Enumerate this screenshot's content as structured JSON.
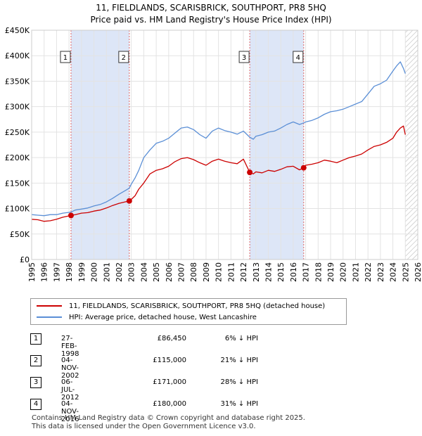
{
  "chart_data": {
    "type": "line",
    "title": "11, FIELDLANDS, SCARISBRICK, SOUTHPORT, PR8 5HQ",
    "subtitle": "Price paid vs. HM Land Registry's House Price Index (HPI)",
    "xlabel": "",
    "ylabel": "",
    "xlim": [
      1995,
      2026
    ],
    "ylim": [
      0,
      450000
    ],
    "y_ticks": [
      0,
      50000,
      100000,
      150000,
      200000,
      250000,
      300000,
      350000,
      400000,
      450000
    ],
    "y_tick_labels": [
      "£0",
      "£50K",
      "£100K",
      "£150K",
      "£200K",
      "£250K",
      "£300K",
      "£350K",
      "£400K",
      "£450K"
    ],
    "x_ticks": [
      1995,
      1996,
      1997,
      1998,
      1999,
      2000,
      2001,
      2002,
      2003,
      2004,
      2005,
      2006,
      2007,
      2008,
      2009,
      2010,
      2011,
      2012,
      2013,
      2014,
      2015,
      2016,
      2017,
      2018,
      2019,
      2020,
      2021,
      2022,
      2023,
      2024,
      2025,
      2026
    ],
    "x_tick_labels": [
      "1995",
      "1996",
      "1997",
      "1998",
      "1999",
      "2000",
      "2001",
      "2002",
      "2003",
      "2004",
      "2005",
      "2006",
      "2007",
      "2008",
      "2009",
      "2010",
      "2011",
      "2012",
      "2013",
      "2014",
      "2015",
      "2016",
      "2017",
      "2018",
      "2019",
      "2020",
      "2021",
      "2022",
      "2023",
      "2024",
      "2025",
      "2026"
    ],
    "grid": true,
    "series": [
      {
        "name": "11, FIELDLANDS, SCARISBRICK, SOUTHPORT, PR8 5HQ (detached house)",
        "color": "#cc0000",
        "x": [
          1995.0,
          1995.5,
          1996.0,
          1996.5,
          1997.0,
          1997.5,
          1998.16,
          1998.5,
          1999.0,
          1999.5,
          2000.0,
          2000.5,
          2001.0,
          2001.5,
          2002.0,
          2002.5,
          2002.84,
          2003.0,
          2003.3,
          2003.6,
          2004.0,
          2004.5,
          2005.0,
          2005.5,
          2006.0,
          2006.5,
          2007.0,
          2007.5,
          2008.0,
          2008.5,
          2009.0,
          2009.5,
          2010.0,
          2010.5,
          2011.0,
          2011.5,
          2012.0,
          2012.51,
          2012.8,
          2013.0,
          2013.5,
          2014.0,
          2014.5,
          2015.0,
          2015.5,
          2016.0,
          2016.5,
          2016.84,
          2017.0,
          2017.5,
          2018.0,
          2018.5,
          2019.0,
          2019.5,
          2020.0,
          2020.5,
          2021.0,
          2021.5,
          2022.0,
          2022.5,
          2023.0,
          2023.5,
          2024.0,
          2024.3,
          2024.6,
          2024.85,
          2025.0
        ],
        "values": [
          79000,
          78000,
          75000,
          76000,
          79000,
          83000,
          86450,
          88000,
          91000,
          92000,
          95000,
          97000,
          101000,
          106000,
          110000,
          113000,
          115000,
          118000,
          125000,
          138000,
          150000,
          168000,
          175000,
          178000,
          183000,
          192000,
          198000,
          200000,
          196000,
          190000,
          185000,
          193000,
          197000,
          193000,
          190000,
          188000,
          197000,
          171000,
          168000,
          172000,
          170000,
          175000,
          173000,
          177000,
          182000,
          183000,
          176000,
          180000,
          185000,
          187000,
          190000,
          195000,
          193000,
          190000,
          195000,
          200000,
          203000,
          207000,
          215000,
          222000,
          225000,
          230000,
          238000,
          250000,
          258000,
          262000,
          245000
        ]
      },
      {
        "name": "HPI: Average price, detached house, West Lancashire",
        "color": "#5b8fd6",
        "x": [
          1995.0,
          1995.5,
          1996.0,
          1996.5,
          1997.0,
          1997.5,
          1998.16,
          1998.5,
          1999.0,
          1999.5,
          2000.0,
          2000.5,
          2001.0,
          2001.5,
          2002.0,
          2002.5,
          2002.84,
          2003.0,
          2003.3,
          2003.6,
          2004.0,
          2004.5,
          2005.0,
          2005.5,
          2006.0,
          2006.5,
          2007.0,
          2007.5,
          2008.0,
          2008.5,
          2009.0,
          2009.5,
          2010.0,
          2010.5,
          2011.0,
          2011.5,
          2012.0,
          2012.51,
          2012.8,
          2013.0,
          2013.5,
          2014.0,
          2014.5,
          2015.0,
          2015.5,
          2016.0,
          2016.5,
          2016.84,
          2017.0,
          2017.5,
          2018.0,
          2018.5,
          2019.0,
          2019.5,
          2020.0,
          2020.5,
          2021.0,
          2021.5,
          2022.0,
          2022.5,
          2023.0,
          2023.5,
          2024.0,
          2024.3,
          2024.6,
          2024.85,
          2025.0
        ],
        "values": [
          88000,
          87000,
          86000,
          88000,
          88000,
          91000,
          93000,
          97000,
          99000,
          101000,
          105000,
          108000,
          113000,
          120000,
          128000,
          135000,
          140000,
          148000,
          160000,
          175000,
          200000,
          215000,
          228000,
          232000,
          238000,
          248000,
          258000,
          260000,
          255000,
          245000,
          238000,
          252000,
          258000,
          253000,
          250000,
          246000,
          252000,
          240000,
          236000,
          242000,
          245000,
          250000,
          252000,
          258000,
          265000,
          270000,
          265000,
          268000,
          270000,
          273000,
          278000,
          285000,
          290000,
          292000,
          295000,
          300000,
          305000,
          310000,
          325000,
          340000,
          345000,
          352000,
          370000,
          380000,
          388000,
          375000,
          365000
        ]
      }
    ],
    "sales": [
      {
        "label": "1",
        "x": 1998.16,
        "price": 86450
      },
      {
        "label": "2",
        "x": 2002.84,
        "price": 115000
      },
      {
        "label": "3",
        "x": 2012.51,
        "price": 171000
      },
      {
        "label": "4",
        "x": 2016.84,
        "price": 180000
      }
    ],
    "shaded_periods": [
      [
        1998.16,
        2002.84
      ],
      [
        2012.51,
        2016.84
      ]
    ],
    "forecast_start": 2025.0
  },
  "legend": {
    "property": "11, FIELDLANDS, SCARISBRICK, SOUTHPORT, PR8 5HQ (detached house)",
    "hpi": "HPI: Average price, detached house, West Lancashire",
    "property_color": "#cc0000",
    "hpi_color": "#5b8fd6"
  },
  "sales_table": [
    {
      "num": "1",
      "date": "27-FEB-1998",
      "price": "£86,450",
      "hpi": "6% ↓ HPI"
    },
    {
      "num": "2",
      "date": "04-NOV-2002",
      "price": "£115,000",
      "hpi": "21% ↓ HPI"
    },
    {
      "num": "3",
      "date": "06-JUL-2012",
      "price": "£171,000",
      "hpi": "28% ↓ HPI"
    },
    {
      "num": "4",
      "date": "04-NOV-2016",
      "price": "£180,000",
      "hpi": "31% ↓ HPI"
    }
  ],
  "footer": {
    "line1": "Contains HM Land Registry data © Crown copyright and database right 2025.",
    "line2": "This data is licensed under the Open Government Licence v3.0."
  }
}
